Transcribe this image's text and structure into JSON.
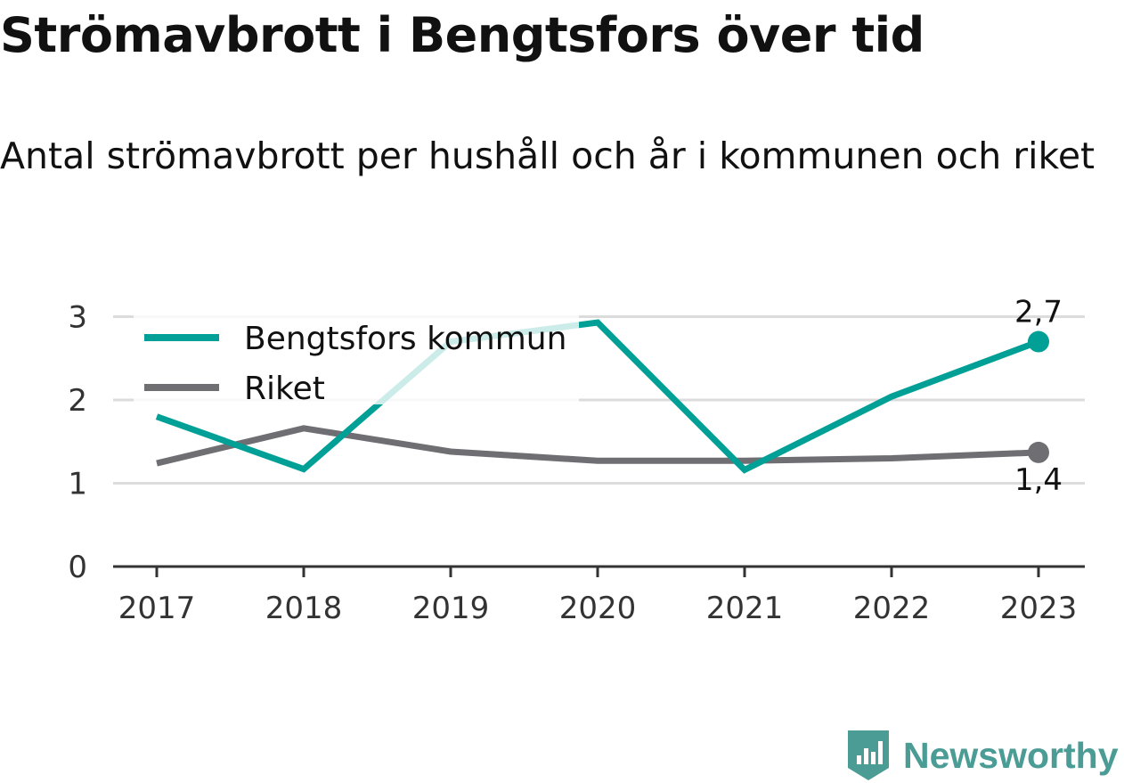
{
  "title": "Strömavbrott i Bengtsfors över tid",
  "subtitle": "Antal strömavbrott per hushåll och år i kommunen och riket",
  "brand": {
    "name": "Newsworthy",
    "logo_icon": "bar-chart-icon",
    "color": "#4a9c94"
  },
  "colors": {
    "kommun": "#00a096",
    "riket": "#6f6e73",
    "grid": "#dcdcdc",
    "axis": "#333333"
  },
  "chart_data": {
    "type": "line",
    "title": "Strömavbrott i Bengtsfors över tid",
    "subtitle": "Antal strömavbrott per hushåll och år i kommunen och riket",
    "xlabel": "",
    "ylabel": "",
    "x": [
      "2017",
      "2018",
      "2019",
      "2020",
      "2021",
      "2022",
      "2023"
    ],
    "ylim": [
      0,
      3
    ],
    "yticks": [
      "0",
      "1",
      "2",
      "3"
    ],
    "grid": true,
    "legend_position": "top-left",
    "series": [
      {
        "name": "Bengtsfors kommun",
        "values": [
          1.8,
          1.17,
          2.7,
          2.93,
          1.16,
          2.04,
          2.7
        ],
        "end_label": "2,7",
        "color": "#00a096"
      },
      {
        "name": "Riket",
        "values": [
          1.24,
          1.66,
          1.38,
          1.27,
          1.27,
          1.3,
          1.37
        ],
        "end_label": "1,4",
        "color": "#6f6e73"
      }
    ]
  }
}
